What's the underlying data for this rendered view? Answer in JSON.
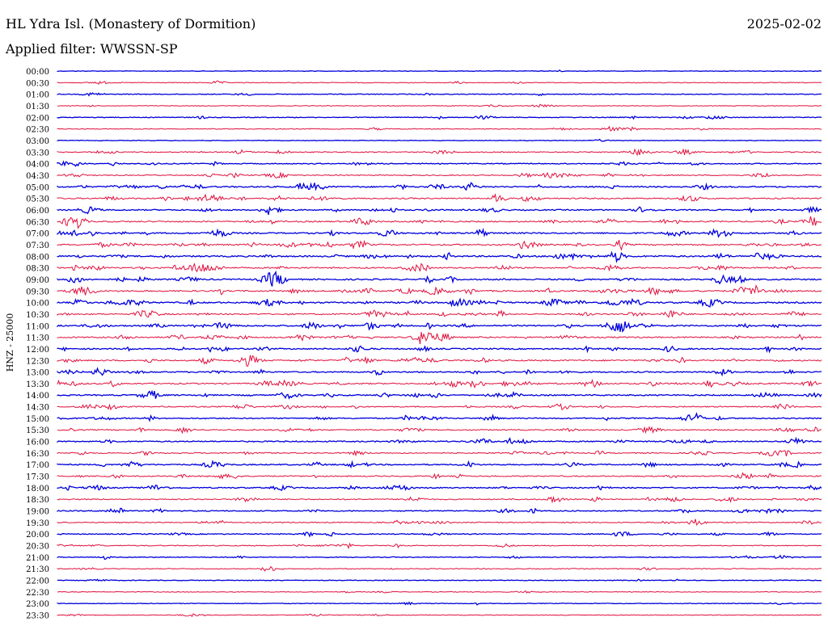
{
  "header": {
    "station": "HL Ydra Isl. (Monastery of Dormition)",
    "date": "2025-02-02",
    "filter": "Applied filter: WWSSN-SP"
  },
  "chart_data": {
    "type": "line",
    "title": "HL Ydra Isl. (Monastery of Dormition)",
    "subtitle": "Applied filter: WWSSN-SP",
    "ylabel": "HNZ - 25000",
    "date": "2025-02-02",
    "rows": [
      "00:00",
      "00:30",
      "01:00",
      "01:30",
      "02:00",
      "02:30",
      "03:00",
      "03:30",
      "04:00",
      "04:30",
      "05:00",
      "05:30",
      "06:00",
      "06:30",
      "07:00",
      "07:30",
      "08:00",
      "08:30",
      "09:00",
      "09:30",
      "10:00",
      "10:30",
      "11:00",
      "11:30",
      "12:00",
      "12:30",
      "13:00",
      "13:30",
      "14:00",
      "14:30",
      "15:00",
      "15:30",
      "16:00",
      "16:30",
      "17:00",
      "17:30",
      "18:00",
      "18:30",
      "19:00",
      "19:30",
      "20:00",
      "20:30",
      "21:00",
      "21:30",
      "22:00",
      "22:30",
      "23:00",
      "23:30"
    ],
    "activity_level": [
      0.05,
      0.15,
      0.15,
      0.1,
      0.2,
      0.2,
      0.05,
      0.35,
      0.3,
      0.35,
      0.55,
      0.55,
      0.5,
      0.6,
      0.6,
      0.65,
      0.65,
      0.6,
      0.6,
      0.7,
      0.65,
      0.6,
      0.65,
      0.6,
      0.55,
      0.6,
      0.5,
      0.6,
      0.5,
      0.45,
      0.45,
      0.45,
      0.45,
      0.45,
      0.45,
      0.45,
      0.45,
      0.4,
      0.35,
      0.35,
      0.3,
      0.3,
      0.2,
      0.2,
      0.1,
      0.1,
      0.1,
      0.15
    ],
    "series_colors": [
      "#0000dd",
      "#e0103c"
    ]
  }
}
